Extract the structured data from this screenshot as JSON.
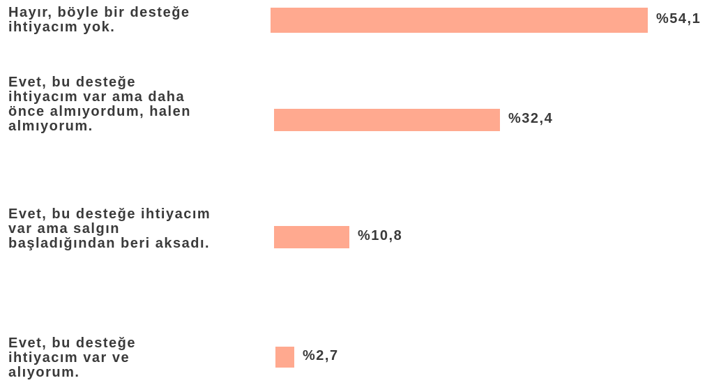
{
  "chart_data": {
    "type": "bar",
    "orientation": "horizontal",
    "categories": [
      "Hayır, böyle bir desteğe ihtiyacım yok.",
      "Evet, bu desteğe ihtiyacım var ama daha önce almıyordum, halen almıyorum.",
      "Evet, bu desteğe ihtiyacım var ama salgın başladığından beri aksadı.",
      "Evet, bu desteğe ihtiyacım var ve alıyorum."
    ],
    "values": [
      54.1,
      32.4,
      10.8,
      2.7
    ],
    "value_labels": [
      "%54,1",
      "%32,4",
      "%10,8",
      "%2,7"
    ],
    "color": "#ffa98f"
  }
}
